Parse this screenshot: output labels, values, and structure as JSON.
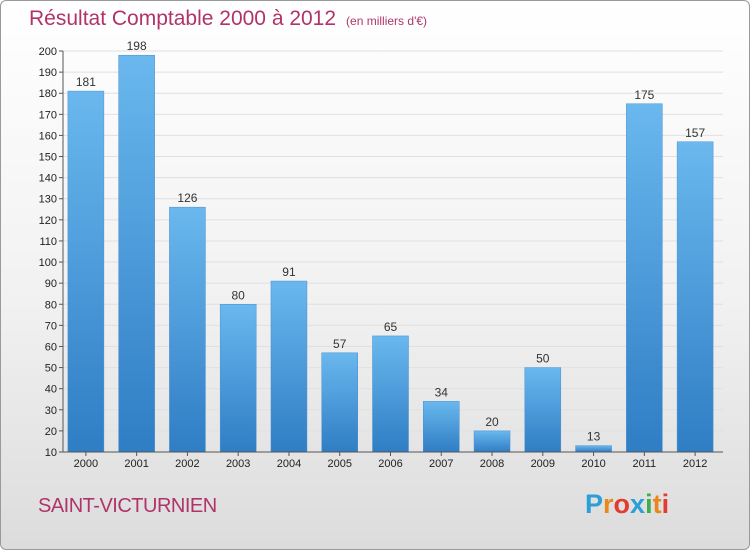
{
  "header": {
    "title": "Résultat Comptable 2000 à 2012",
    "subtitle": "(en milliers d'€)"
  },
  "footer": {
    "town": "SAINT-VICTURNIEN",
    "logo_letters": [
      "P",
      "r",
      "o",
      "x",
      "i",
      "t",
      "i"
    ],
    "logo_colors": [
      "#2a9fd8",
      "#e8881a",
      "#e33b2f",
      "#2a9fd8",
      "#3dae49",
      "#e8881a",
      "#e33b2f"
    ]
  },
  "colors": {
    "title": "#b0346a",
    "bar_top": "#6ab8ee",
    "bar_bottom": "#2f7dc4",
    "axis": "#555555",
    "grid": "#e0e0e0"
  },
  "chart_data": {
    "type": "bar",
    "title": "Résultat Comptable 2000 à 2012",
    "subtitle": "(en milliers d'€)",
    "categories": [
      "2000",
      "2001",
      "2002",
      "2003",
      "2004",
      "2005",
      "2006",
      "2007",
      "2008",
      "2009",
      "2010",
      "2011",
      "2012"
    ],
    "values": [
      181,
      198,
      126,
      80,
      91,
      57,
      65,
      34,
      20,
      50,
      13,
      175,
      157
    ],
    "ylim": [
      10,
      200
    ],
    "yticks": [
      10,
      20,
      30,
      40,
      50,
      60,
      70,
      80,
      90,
      100,
      110,
      120,
      130,
      140,
      150,
      160,
      170,
      180,
      190,
      200
    ],
    "grid": true,
    "data_labels": true
  }
}
